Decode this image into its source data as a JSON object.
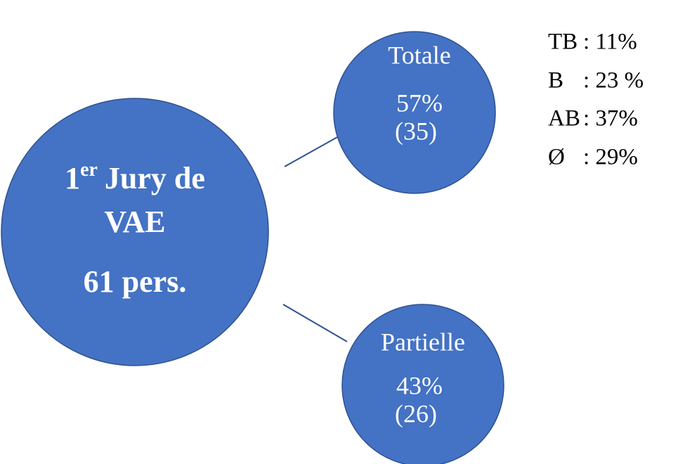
{
  "main": {
    "number": "1",
    "superscript": "er",
    "line1": "Jury de",
    "line2": "VAE",
    "line3": "61 pers."
  },
  "nodes": [
    {
      "label": "Totale",
      "percent": "57%",
      "count": "(35)"
    },
    {
      "label": "Partielle",
      "percent": "43%",
      "count": "(26)"
    }
  ],
  "legend": [
    {
      "label": "TB",
      "text": ": 11%"
    },
    {
      "label": "B",
      "text": ": 23 %"
    },
    {
      "label": "AB",
      "text": ": 37%"
    },
    {
      "label": "Ø",
      "text": ": 29%"
    }
  ]
}
